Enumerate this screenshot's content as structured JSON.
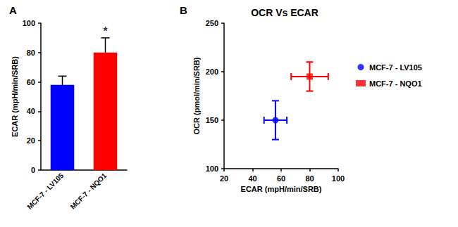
{
  "chart_data": [
    {
      "type": "bar",
      "panel": "A",
      "categories": [
        "MCF-7 - LV105",
        "MCF-7 - NQO1"
      ],
      "values": [
        58,
        80
      ],
      "errors": [
        6,
        10
      ],
      "colors": [
        "#0000ff",
        "#ff0000"
      ],
      "ylabel": "ECAR (mpH/min/SRB)",
      "ylim": [
        0,
        100
      ],
      "yticks": [
        0,
        20,
        40,
        60,
        80,
        100
      ],
      "annotations": [
        {
          "category": "MCF-7 - NQO1",
          "text": "*"
        }
      ],
      "grid": false
    },
    {
      "type": "scatter",
      "panel": "B",
      "title": "OCR Vs ECAR",
      "xlabel": "ECAR (mpH/min/SRB)",
      "ylabel": "OCR (pmol/min/SRB)",
      "xlim": [
        20,
        100
      ],
      "xticks": [
        20,
        40,
        60,
        80,
        100
      ],
      "ylim": [
        100,
        250
      ],
      "yticks": [
        100,
        150,
        200,
        250
      ],
      "grid": false,
      "legend": "right",
      "series": [
        {
          "name": "MCF-7 - LV105",
          "color": "#0000ff",
          "marker": "circle",
          "x": [
            56
          ],
          "values": [
            150
          ],
          "x_errors": [
            8
          ],
          "errors": [
            20
          ]
        },
        {
          "name": "MCF-7 - NQO1",
          "color": "#ff0000",
          "marker": "square",
          "x": [
            80
          ],
          "values": [
            195
          ],
          "x_errors": [
            13
          ],
          "errors": [
            15
          ]
        }
      ]
    }
  ]
}
